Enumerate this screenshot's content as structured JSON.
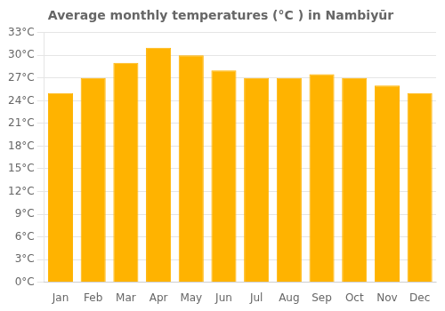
{
  "chart_data": {
    "type": "bar",
    "title": "Average monthly temperatures (°C ) in Nambiyūr",
    "categories": [
      "Jan",
      "Feb",
      "Mar",
      "Apr",
      "May",
      "Jun",
      "Jul",
      "Aug",
      "Sep",
      "Oct",
      "Nov",
      "Dec"
    ],
    "values": [
      25.0,
      27.0,
      29.0,
      31.0,
      30.0,
      28.0,
      27.0,
      27.0,
      27.5,
      27.0,
      26.0,
      25.0
    ],
    "color": "#FFB300",
    "ylim": [
      0,
      33
    ],
    "yticks": [
      {
        "value": 0,
        "label": "0°C"
      },
      {
        "value": 3,
        "label": "3°C"
      },
      {
        "value": 6,
        "label": "6°C"
      },
      {
        "value": 9,
        "label": "9°C"
      },
      {
        "value": 12,
        "label": "12°C"
      },
      {
        "value": 15,
        "label": "15°C"
      },
      {
        "value": 18,
        "label": "18°C"
      },
      {
        "value": 21,
        "label": "21°C"
      },
      {
        "value": 24,
        "label": "24°C"
      },
      {
        "value": 27,
        "label": "27°C"
      },
      {
        "value": 30,
        "label": "30°C"
      },
      {
        "value": 33,
        "label": "33°C"
      }
    ],
    "grid": "y"
  }
}
